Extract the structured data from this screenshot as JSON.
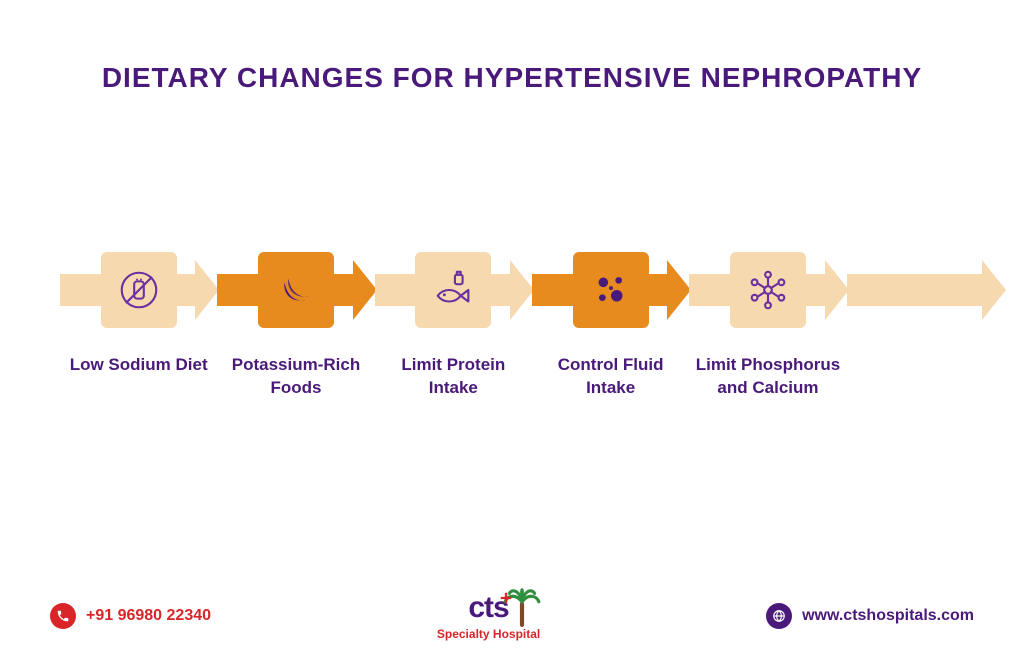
{
  "title": {
    "text": "DIETARY CHANGES FOR HYPERTENSIVE NEPHROPATHY",
    "color": "#4a1a7a",
    "fontsize": 28
  },
  "colors": {
    "light": "#f7d9b0",
    "dark": "#e78b1f",
    "purple": "#4a1a7a",
    "red": "#d9252a",
    "label": "#4a1a7a"
  },
  "steps": [
    {
      "label": "Low Sodium Diet",
      "arrow_color": "#f7d9b0",
      "box_color": "#f7d9b0",
      "icon_color": "#6b2fa0",
      "icon": "no-salt"
    },
    {
      "label": "Potassium-Rich Foods",
      "arrow_color": "#e78b1f",
      "box_color": "#e78b1f",
      "icon_color": "#4a1a7a",
      "icon": "banana"
    },
    {
      "label": "Limit Protein Intake",
      "arrow_color": "#f7d9b0",
      "box_color": "#f7d9b0",
      "icon_color": "#6b2fa0",
      "icon": "fish"
    },
    {
      "label": "Control Fluid Intake",
      "arrow_color": "#e78b1f",
      "box_color": "#e78b1f",
      "icon_color": "#4a1a7a",
      "icon": "dots"
    },
    {
      "label": "Limit Phosphorus and Calcium",
      "arrow_color": "#f7d9b0",
      "box_color": "#f7d9b0",
      "icon_color": "#6b2fa0",
      "icon": "molecule"
    }
  ],
  "label_fontsize": 17,
  "footer": {
    "phone": "+91 96980 22340",
    "phone_color": "#d9252a",
    "phone_icon_bg": "#d9252a",
    "website": "www.ctshospitals.com",
    "website_color": "#4a1a7a",
    "website_icon_bg": "#4a1a7a",
    "logo_text": "cts",
    "logo_sub": "Specialty Hospital",
    "logo_color": "#4a1a7a",
    "logo_sub_color": "#d9252a",
    "logo_fontsize": 30,
    "logo_sub_fontsize": 12
  }
}
